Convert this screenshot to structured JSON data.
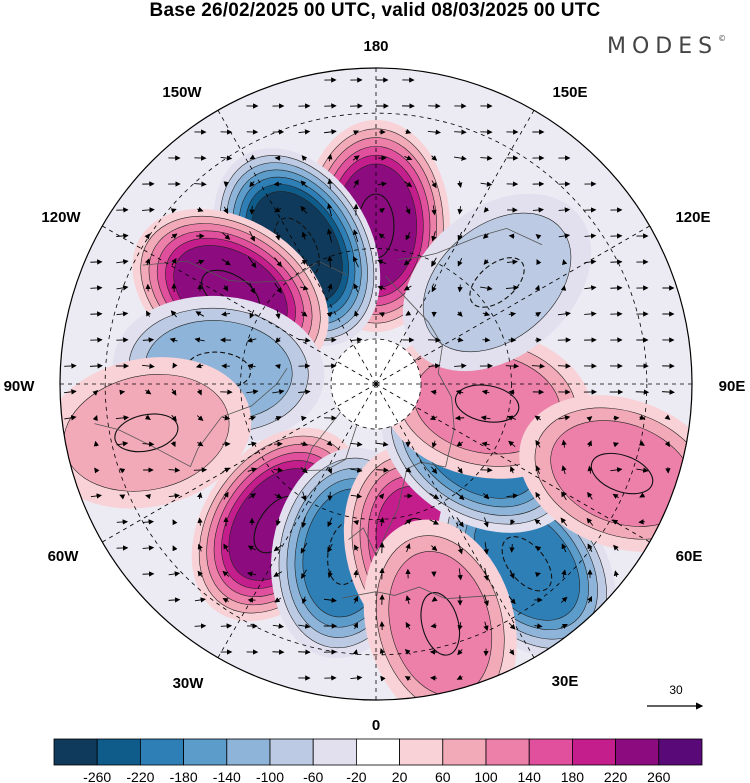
{
  "title": "Base 26/02/2025 00 UTC, valid 08/03/2025 00 UTC",
  "brand": "MODES",
  "brand_mark": "©",
  "meridian_labels": {
    "n180": "180",
    "e150": "150E",
    "e120": "120E",
    "e90": "90E",
    "e60": "60E",
    "e30": "30E",
    "z0": "0",
    "w30": "30W",
    "w60": "60W",
    "w90": "90W",
    "w120": "120W",
    "w150": "150W"
  },
  "vector_reference": "30",
  "colorbar": {
    "ticks": [
      "-260",
      "-220",
      "-180",
      "-140",
      "-100",
      "-60",
      "-20",
      "20",
      "60",
      "100",
      "140",
      "180",
      "220",
      "260"
    ],
    "colors": [
      "#0f3a5b",
      "#0f5b8a",
      "#2f7fb7",
      "#5c9ccb",
      "#8eb5d9",
      "#bccbe3",
      "#e2e0ee",
      "#ffffff",
      "#f8d2d6",
      "#f3aab8",
      "#ec80a8",
      "#e0509c",
      "#c41e8c",
      "#8c0c80",
      "#5a0a78"
    ]
  },
  "anomaly_centers": [
    {
      "lon": 180,
      "lat": 55,
      "value": 250
    },
    {
      "lon": -150,
      "lat": 55,
      "value": -260
    },
    {
      "lon": -122,
      "lat": 52,
      "value": 250
    },
    {
      "lon": -95,
      "lat": 55,
      "value": -110
    },
    {
      "lon": -78,
      "lat": 38,
      "value": 90
    },
    {
      "lon": -35,
      "lat": 52,
      "value": 250
    },
    {
      "lon": -10,
      "lat": 52,
      "value": -180
    },
    {
      "lon": 15,
      "lat": 52,
      "value": 200
    },
    {
      "lon": 40,
      "lat": 38,
      "value": -190
    },
    {
      "lon": 58,
      "lat": 63,
      "value": -210
    },
    {
      "lon": 80,
      "lat": 65,
      "value": 130
    },
    {
      "lon": 70,
      "lat": 32,
      "value": 100
    },
    {
      "lon": 130,
      "lat": 55,
      "value": -90
    },
    {
      "lon": 15,
      "lat": 35,
      "value": 100
    }
  ]
}
